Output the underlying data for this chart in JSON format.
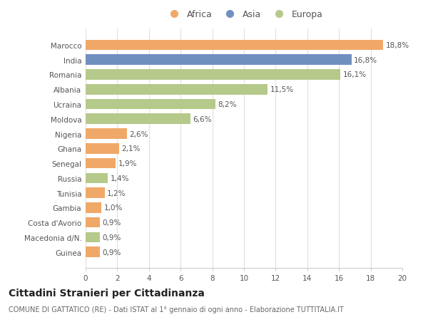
{
  "categories": [
    "Guinea",
    "Macedonia d/N.",
    "Costa d'Avorio",
    "Gambia",
    "Tunisia",
    "Russia",
    "Senegal",
    "Ghana",
    "Nigeria",
    "Moldova",
    "Ucraina",
    "Albania",
    "Romania",
    "India",
    "Marocco"
  ],
  "values": [
    0.9,
    0.9,
    0.9,
    1.0,
    1.2,
    1.4,
    1.9,
    2.1,
    2.6,
    6.6,
    8.2,
    11.5,
    16.1,
    16.8,
    18.8
  ],
  "labels": [
    "0,9%",
    "0,9%",
    "0,9%",
    "1,0%",
    "1,2%",
    "1,4%",
    "1,9%",
    "2,1%",
    "2,6%",
    "6,6%",
    "8,2%",
    "11,5%",
    "16,1%",
    "16,8%",
    "18,8%"
  ],
  "colors": [
    "#f0a868",
    "#b5c98a",
    "#f0a868",
    "#f0a868",
    "#f0a868",
    "#b5c98a",
    "#f0a868",
    "#f0a868",
    "#f0a868",
    "#b5c98a",
    "#b5c98a",
    "#b5c98a",
    "#b5c98a",
    "#7090c0",
    "#f0a868"
  ],
  "legend_labels": [
    "Africa",
    "Asia",
    "Europa"
  ],
  "legend_colors": [
    "#f0a868",
    "#7090c0",
    "#b5c98a"
  ],
  "title": "Cittadini Stranieri per Cittadinanza",
  "subtitle": "COMUNE DI GATTATICO (RE) - Dati ISTAT al 1° gennaio di ogni anno - Elaborazione TUTTITALIA.IT",
  "xlim": [
    0,
    20
  ],
  "xticks": [
    0,
    2,
    4,
    6,
    8,
    10,
    12,
    14,
    16,
    18,
    20
  ],
  "background_color": "#ffffff",
  "bar_height": 0.7,
  "label_fontsize": 7.5,
  "tick_fontsize": 7.5,
  "title_fontsize": 10,
  "subtitle_fontsize": 7
}
